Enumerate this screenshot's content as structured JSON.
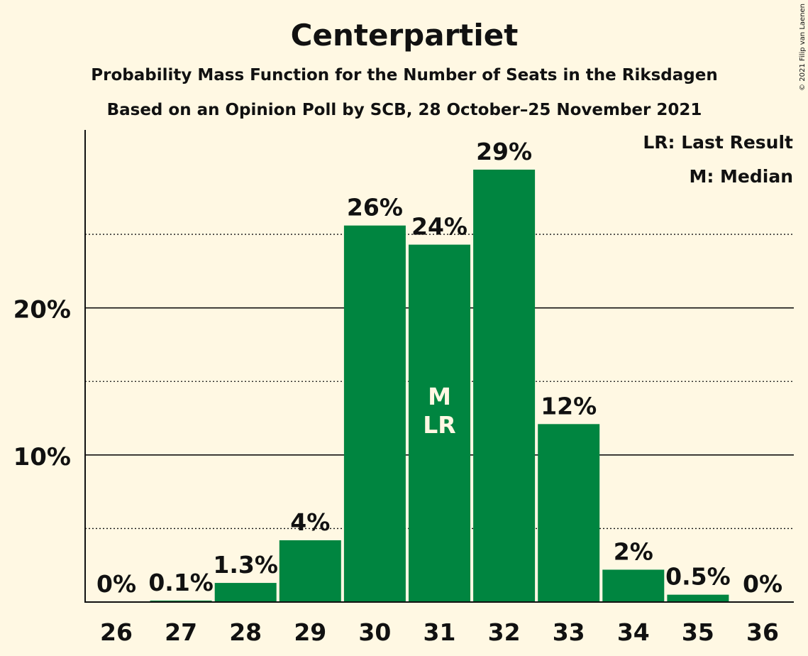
{
  "chart_data": {
    "type": "bar",
    "title": "Centerpartiet",
    "subtitle1": "Probability Mass Function for the Number of Seats in the Riksdagen",
    "subtitle2": "Based on an Opinion Poll by SCB, 28 October–25 November 2021",
    "copyright": "© 2021 Filip van Laenen",
    "categories": [
      "26",
      "27",
      "28",
      "29",
      "30",
      "31",
      "32",
      "33",
      "34",
      "35",
      "36"
    ],
    "values": [
      0,
      0.1,
      1.3,
      4.2,
      25.6,
      24.3,
      29.4,
      12.1,
      2.2,
      0.5,
      0
    ],
    "data_labels": [
      "0%",
      "0.1%",
      "1.3%",
      "4%",
      "26%",
      "24%",
      "29%",
      "12%",
      "2%",
      "0.5%",
      "0%"
    ],
    "y_ticks": [
      {
        "value": 10,
        "label": "10%"
      },
      {
        "value": 20,
        "label": "20%"
      }
    ],
    "minor_gridlines": [
      5,
      15,
      25
    ],
    "ylim": [
      0,
      32.1
    ],
    "bar_color": "#008540",
    "bar_markers": {
      "31": [
        "M",
        "LR"
      ]
    },
    "legend": [
      "LR: Last Result",
      "M: Median"
    ],
    "legend_position": "top-right",
    "xlabel": "",
    "ylabel": ""
  }
}
